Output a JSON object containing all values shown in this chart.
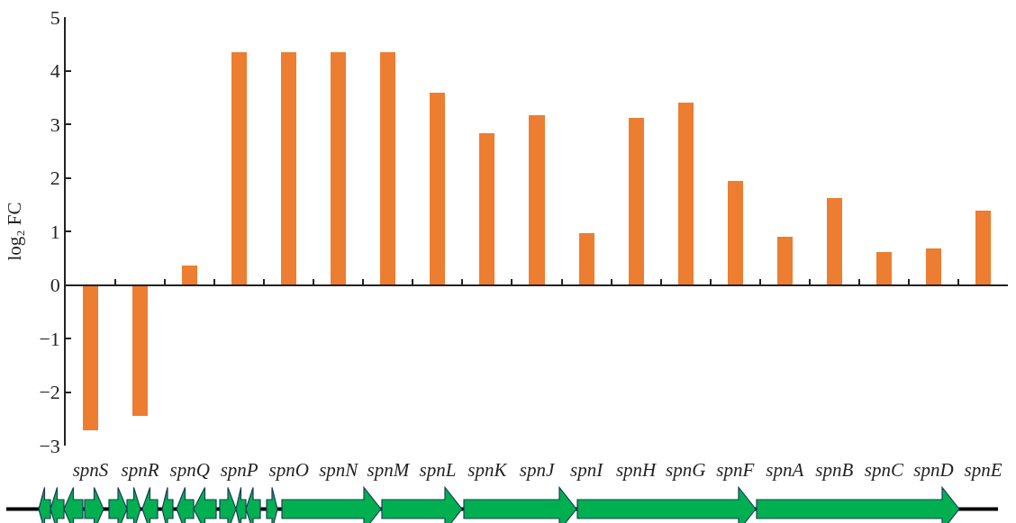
{
  "chart_data": {
    "type": "bar",
    "ylabel": "log₂ FC",
    "categories": [
      "spnS",
      "spnR",
      "spnQ",
      "spnP",
      "spnO",
      "spnN",
      "spnM",
      "spnL",
      "spnK",
      "spnJ",
      "spnI",
      "spnH",
      "spnG",
      "spnF",
      "spnA",
      "spnB",
      "spnC",
      "spnD",
      "spnE"
    ],
    "values": [
      -2.71,
      -2.45,
      0.36,
      4.34,
      4.34,
      4.34,
      4.34,
      3.59,
      2.83,
      3.16,
      0.97,
      3.11,
      3.4,
      1.94,
      0.9,
      1.62,
      0.61,
      0.68,
      1.38
    ],
    "color": "#ed7d31",
    "ylim": [
      -3,
      5
    ],
    "yticks": [
      -3,
      -2,
      -1,
      0,
      1,
      2,
      3,
      4,
      5
    ]
  }
}
